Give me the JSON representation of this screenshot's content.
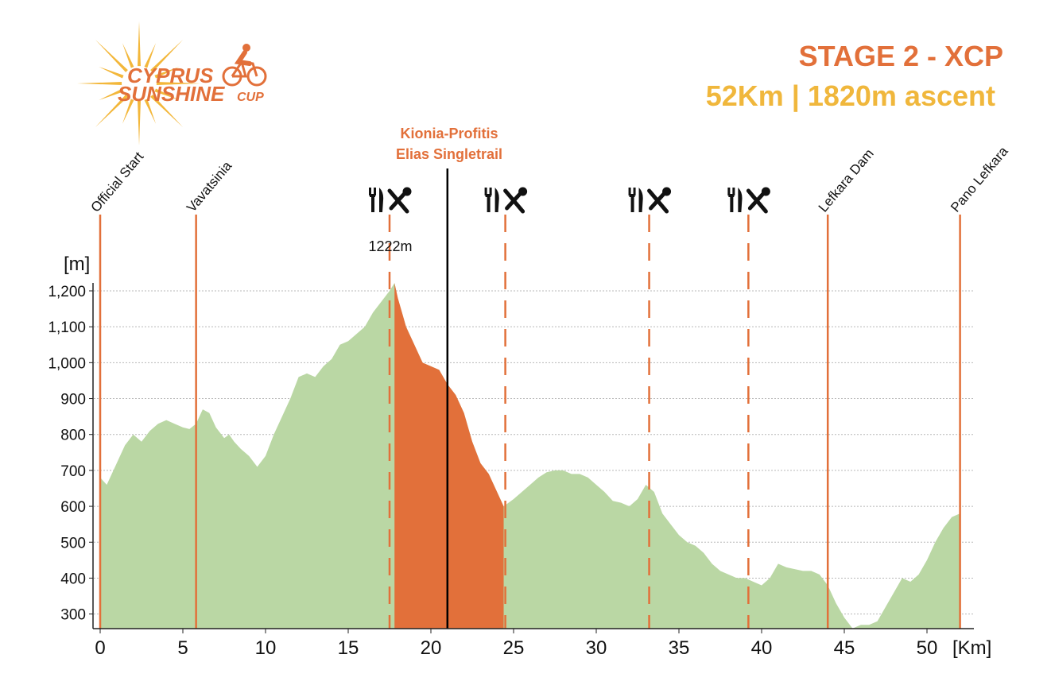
{
  "header": {
    "title": "STAGE 2 - XCP",
    "subtitle": "52Km | 1820m ascent"
  },
  "logo": {
    "line1": "CYPRUS",
    "line2": "SUNSHINE",
    "line3": "CUP",
    "icon": "cyclist-icon",
    "sun_color": "#f3b73a",
    "brand_color": "#e2703a"
  },
  "chart_data": {
    "type": "area",
    "xlabel": "[Km]",
    "ylabel": "[m]",
    "xlim": [
      0,
      52.5
    ],
    "ylim": [
      260,
      1260
    ],
    "x_ticks": [
      0,
      5,
      10,
      15,
      20,
      25,
      30,
      35,
      40,
      45,
      50
    ],
    "y_ticks": [
      300,
      400,
      500,
      600,
      700,
      800,
      900,
      1000,
      1100,
      1200
    ],
    "y_tick_labels": [
      "300",
      "400",
      "500",
      "600",
      "700",
      "800",
      "900",
      "1,000",
      "1,100",
      "1,200"
    ],
    "grid_y": true,
    "colors": {
      "profile": "#bad7a4",
      "highlight": "#e2703a",
      "marker": "#e2703a",
      "center": "#000000"
    },
    "profile": {
      "x": [
        0,
        0.4,
        1,
        1.5,
        2,
        2.5,
        3,
        3.5,
        4,
        4.5,
        5,
        5.4,
        5.8,
        6.2,
        6.6,
        7,
        7.5,
        7.8,
        8.1,
        8.5,
        9,
        9.5,
        10,
        10.5,
        11,
        11.5,
        12,
        12.5,
        13,
        13.5,
        14,
        14.5,
        15,
        15.5,
        16,
        16.5,
        17,
        17.5,
        17.8,
        18,
        18.5,
        19,
        19.5,
        20,
        20.5,
        21,
        21.5,
        22,
        22.5,
        23,
        23.5,
        24,
        24.4,
        25,
        25.5,
        26,
        26.5,
        27,
        27.5,
        28,
        28.5,
        29,
        29.5,
        30,
        30.5,
        31,
        31.5,
        32,
        32.5,
        33,
        33.5,
        34,
        34.5,
        35,
        35.5,
        36,
        36.5,
        37,
        37.5,
        38,
        38.5,
        39,
        39.5,
        40,
        40.5,
        41,
        41.5,
        42,
        42.5,
        43,
        43.5,
        44,
        44.5,
        45,
        45.5,
        46,
        46.5,
        47,
        47.5,
        48,
        48.5,
        49,
        49.5,
        50,
        50.5,
        51,
        51.5,
        52
      ],
      "y": [
        680,
        660,
        720,
        770,
        800,
        780,
        810,
        830,
        840,
        830,
        820,
        815,
        830,
        870,
        860,
        820,
        790,
        800,
        780,
        760,
        740,
        710,
        740,
        800,
        850,
        900,
        960,
        970,
        960,
        990,
        1010,
        1050,
        1060,
        1080,
        1100,
        1140,
        1170,
        1200,
        1222,
        1180,
        1100,
        1050,
        1000,
        990,
        980,
        940,
        910,
        860,
        780,
        720,
        690,
        640,
        600,
        620,
        640,
        660,
        680,
        695,
        700,
        700,
        690,
        690,
        680,
        660,
        640,
        615,
        610,
        600,
        620,
        660,
        640,
        580,
        550,
        520,
        500,
        490,
        470,
        440,
        420,
        410,
        400,
        400,
        390,
        380,
        400,
        440,
        430,
        425,
        420,
        420,
        410,
        380,
        330,
        290,
        260,
        270,
        270,
        280,
        320,
        360,
        400,
        390,
        410,
        450,
        500,
        540,
        570,
        580
      ]
    },
    "highlight_segment": {
      "label_line1": "Kionia-Profitis",
      "label_line2": "Elias Singletrail",
      "x_start": 17.8,
      "x_end": 24.4,
      "center_x": 21
    },
    "peak": {
      "x": 17.8,
      "y": 1222,
      "label": "1222m"
    },
    "waypoints": [
      {
        "x": 0,
        "label": "Official Start"
      },
      {
        "x": 5.8,
        "label": "Vavatsinia"
      },
      {
        "x": 44,
        "label": "Lefkara Dam"
      },
      {
        "x": 52,
        "label": "Pano Lefkara"
      }
    ],
    "feed_zones": [
      {
        "x": 17.5,
        "icon": "food-and-tools-icon"
      },
      {
        "x": 24.5,
        "icon": "food-and-tools-icon"
      },
      {
        "x": 33.2,
        "icon": "food-and-tools-icon"
      },
      {
        "x": 39.2,
        "icon": "food-and-tools-icon"
      }
    ]
  }
}
